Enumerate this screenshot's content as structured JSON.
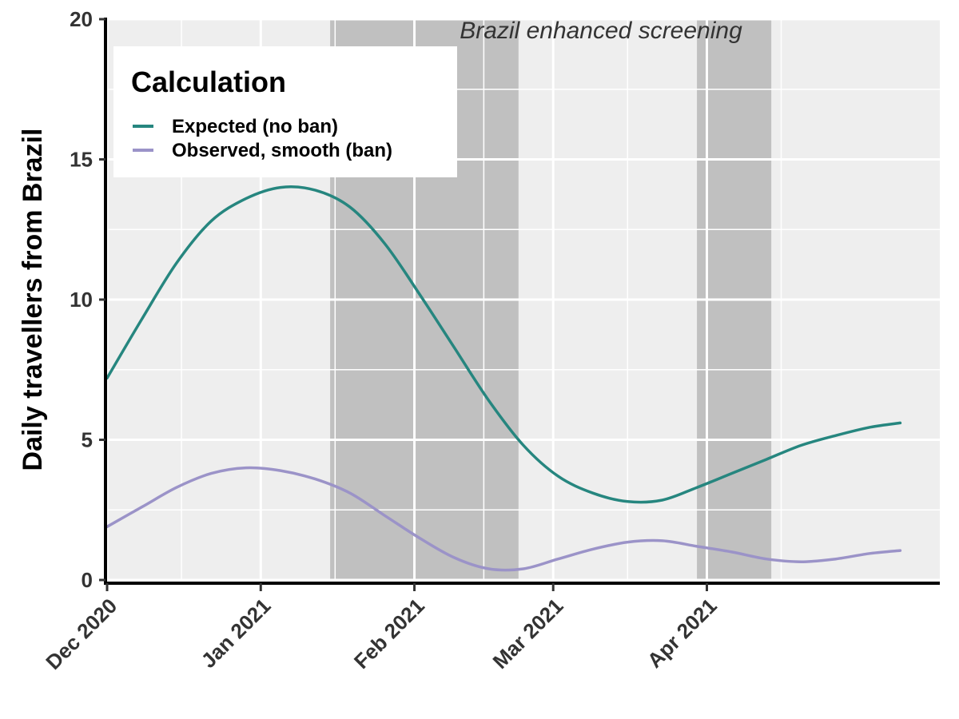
{
  "chart_data": {
    "type": "line",
    "title": "",
    "xlabel": "",
    "ylabel": "Daily travellers from Brazil",
    "x_axis": {
      "type": "date",
      "range": [
        "2020-12-01",
        "2021-05-18"
      ],
      "ticks": [
        {
          "date": "2020-12-01",
          "label": "Dec 2020"
        },
        {
          "date": "2021-01-01",
          "label": "Jan 2021"
        },
        {
          "date": "2021-02-01",
          "label": "Feb 2021"
        },
        {
          "date": "2021-03-01",
          "label": "Mar 2021"
        },
        {
          "date": "2021-04-01",
          "label": "Apr 2021"
        }
      ]
    },
    "ylim": [
      0,
      20
    ],
    "yticks": [
      0,
      5,
      10,
      15,
      20
    ],
    "grid": true,
    "shaded_periods": [
      {
        "start": "2021-01-15",
        "end": "2021-02-22"
      },
      {
        "start": "2021-03-30",
        "end": "2021-04-14"
      }
    ],
    "annotation": "Brazil enhanced screening",
    "legend": {
      "title": "Calculation",
      "position": "top-left"
    },
    "series": [
      {
        "name": "Expected (no ban)",
        "color": "#26867f",
        "points": [
          [
            "2020-12-01",
            7.2
          ],
          [
            "2020-12-08",
            9.3
          ],
          [
            "2020-12-15",
            11.3
          ],
          [
            "2020-12-22",
            12.8
          ],
          [
            "2020-12-29",
            13.6
          ],
          [
            "2021-01-05",
            14.0
          ],
          [
            "2021-01-12",
            13.9
          ],
          [
            "2021-01-19",
            13.3
          ],
          [
            "2021-01-26",
            12.0
          ],
          [
            "2021-02-02",
            10.2
          ],
          [
            "2021-02-09",
            8.3
          ],
          [
            "2021-02-16",
            6.4
          ],
          [
            "2021-02-23",
            4.8
          ],
          [
            "2021-03-02",
            3.7
          ],
          [
            "2021-03-09",
            3.1
          ],
          [
            "2021-03-16",
            2.8
          ],
          [
            "2021-03-23",
            2.85
          ],
          [
            "2021-03-30",
            3.3
          ],
          [
            "2021-04-06",
            3.8
          ],
          [
            "2021-04-13",
            4.3
          ],
          [
            "2021-04-20",
            4.8
          ],
          [
            "2021-04-27",
            5.15
          ],
          [
            "2021-05-04",
            5.45
          ],
          [
            "2021-05-10",
            5.6
          ]
        ]
      },
      {
        "name": "Observed, smooth (ban)",
        "color": "#9b93c8",
        "points": [
          [
            "2020-12-01",
            1.9
          ],
          [
            "2020-12-08",
            2.6
          ],
          [
            "2020-12-15",
            3.3
          ],
          [
            "2020-12-22",
            3.8
          ],
          [
            "2020-12-29",
            4.0
          ],
          [
            "2021-01-05",
            3.9
          ],
          [
            "2021-01-12",
            3.6
          ],
          [
            "2021-01-19",
            3.1
          ],
          [
            "2021-01-26",
            2.3
          ],
          [
            "2021-02-02",
            1.5
          ],
          [
            "2021-02-09",
            0.8
          ],
          [
            "2021-02-16",
            0.4
          ],
          [
            "2021-02-23",
            0.4
          ],
          [
            "2021-03-02",
            0.75
          ],
          [
            "2021-03-09",
            1.1
          ],
          [
            "2021-03-16",
            1.35
          ],
          [
            "2021-03-23",
            1.4
          ],
          [
            "2021-03-30",
            1.2
          ],
          [
            "2021-04-06",
            1.0
          ],
          [
            "2021-04-13",
            0.75
          ],
          [
            "2021-04-20",
            0.65
          ],
          [
            "2021-04-27",
            0.75
          ],
          [
            "2021-05-04",
            0.95
          ],
          [
            "2021-05-10",
            1.05
          ]
        ]
      }
    ]
  }
}
